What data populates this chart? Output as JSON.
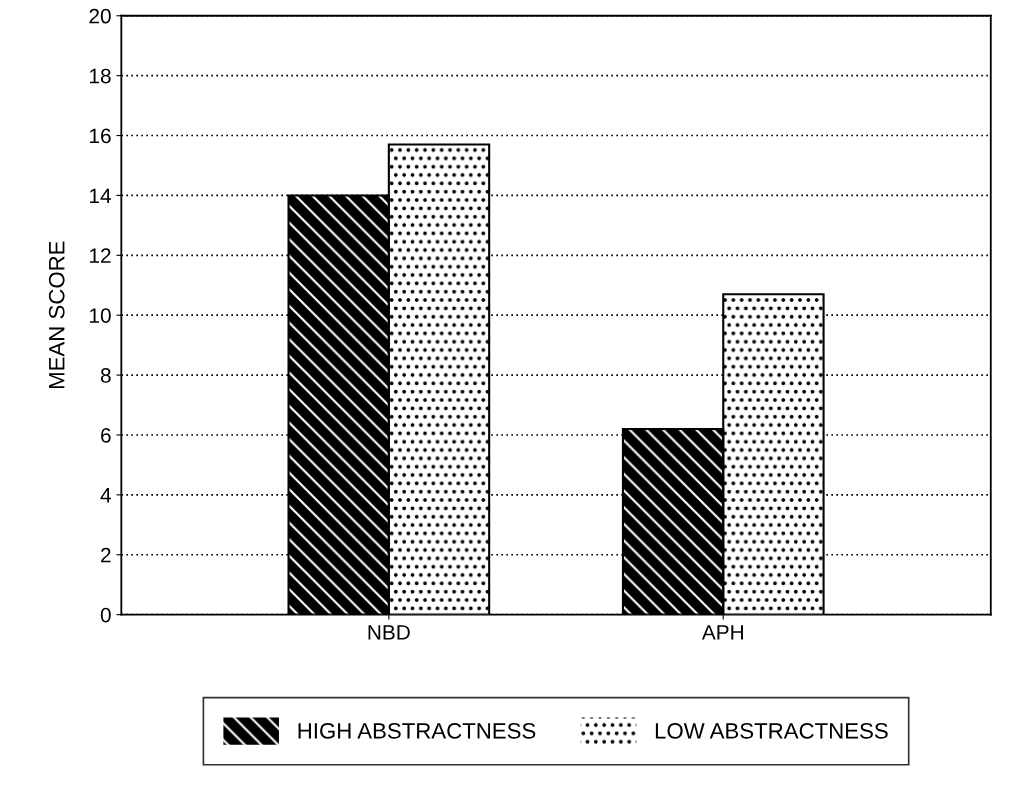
{
  "chart_data": {
    "type": "bar",
    "ylabel": "MEAN SCORE",
    "categories": [
      "NBD",
      "APH"
    ],
    "series": [
      {
        "name": "HIGH ABSTRACTNESS",
        "color": "#000000",
        "values": [
          14.0,
          6.2
        ]
      },
      {
        "name": "LOW ABSTRACTNESS",
        "color": "#ffffff",
        "values": [
          15.7,
          10.7
        ]
      }
    ],
    "ylim": [
      0,
      20
    ],
    "yticks": [
      0,
      2,
      4,
      6,
      8,
      10,
      12,
      14,
      16,
      18,
      20
    ],
    "grid": "y",
    "legend": "bottom"
  }
}
